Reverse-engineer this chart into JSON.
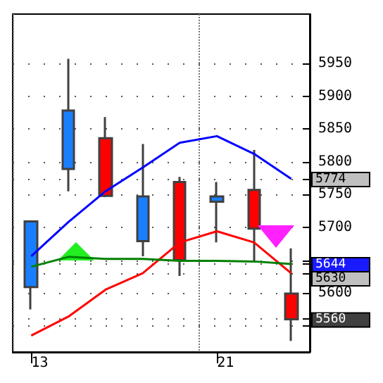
{
  "chart_data": {
    "type": "candlestick",
    "categories": [
      "13",
      null,
      null,
      null,
      null,
      "21",
      null,
      null
    ],
    "ohlc": [
      [
        5609,
        5709,
        5575,
        5709
      ],
      [
        5789,
        5957,
        5755,
        5878
      ],
      [
        5836,
        5868,
        5746,
        5748
      ],
      [
        5679,
        5827,
        5656,
        5747
      ],
      [
        5769,
        5777,
        5626,
        5650
      ],
      [
        5739,
        5769,
        5677,
        5747
      ],
      [
        5757,
        5818,
        5648,
        5698
      ],
      [
        5599,
        5668,
        5527,
        5560
      ]
    ],
    "colors": [
      "#1a7fff",
      "#1a7fff",
      "#ff0000",
      "#1a7fff",
      "#ff0000",
      "#1a7fff",
      "#ff0000",
      "#ff0000"
    ],
    "series": [
      {
        "type": "line",
        "color": "#0000ff",
        "values": [
          5656,
          5708,
          5755,
          5791,
          5829,
          5839,
          5812,
          5774
        ]
      },
      {
        "type": "line",
        "color": "#ff0000",
        "values": [
          5535,
          5564,
          5605,
          5630,
          5677,
          5694,
          5677,
          5630
        ]
      },
      {
        "type": "line",
        "color": "#008000",
        "values": [
          5640,
          5655,
          5652,
          5652,
          5649,
          5649,
          5648,
          5644
        ]
      }
    ],
    "marker": "none",
    "ylim": [
      5510,
      6025
    ],
    "yticks": [
      {
        "value": 5550,
        "label": null
      },
      {
        "value": 5560,
        "label": "5560"
      },
      5600,
      {
        "value": 5630,
        "label": "5630"
      },
      {
        "value": 5644,
        "label": "5644"
      },
      {
        "value": 5650,
        "label": null
      },
      5700,
      5750,
      {
        "value": 5774,
        "label": "5774"
      },
      5800,
      5850,
      5900,
      5950
    ],
    "grid": true
  }
}
